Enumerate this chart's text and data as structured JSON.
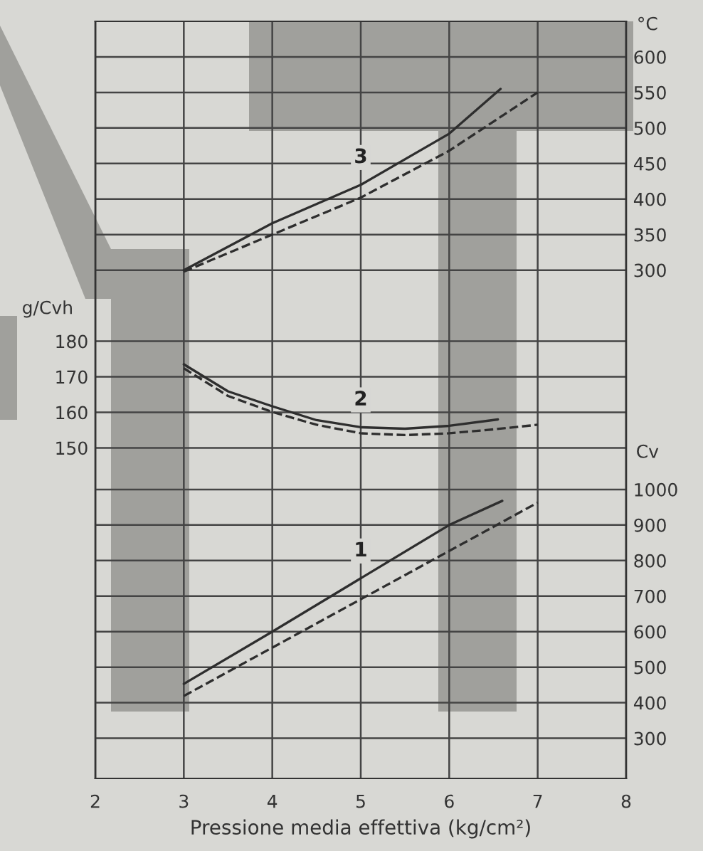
{
  "chart_data": {
    "type": "line",
    "xlabel": "Pressione media effettiva (kg/cm²)",
    "ylabel": "g/Cvh",
    "y2label": "°C",
    "y3label": "Cv",
    "xlim": [
      2,
      8
    ],
    "xticks": [
      2,
      3,
      4,
      5,
      6,
      7,
      8
    ],
    "ylim": [
      57,
      270
    ],
    "yticks": [
      150,
      160,
      170,
      180
    ],
    "y2lim": [
      -415,
      650
    ],
    "y2ticks": [
      300,
      350,
      400,
      450,
      500,
      550,
      600
    ],
    "y3lim": [
      187,
      2317
    ],
    "y3ticks": [
      300,
      400,
      500,
      600,
      700,
      800,
      900,
      1000
    ],
    "grid": true,
    "series": [
      {
        "name": "3",
        "axis": "y2",
        "color": "#2e2e2e",
        "line_style": "solid",
        "x": [
          3,
          4,
          5,
          6,
          6.58
        ],
        "values": [
          300,
          366,
          420,
          492,
          555
        ]
      },
      {
        "axis": "y2",
        "color": "#2e2e2e",
        "line_style": "dashed",
        "x": [
          3,
          4,
          5,
          6,
          7
        ],
        "values": [
          298,
          350,
          402,
          468,
          550
        ]
      },
      {
        "name": "2",
        "axis": "y",
        "color": "#2e2e2e",
        "line_style": "solid",
        "x": [
          3,
          3.5,
          4,
          4.5,
          5,
          5.5,
          6,
          6.55
        ],
        "values": [
          173.5,
          165.9,
          161.7,
          157.8,
          155.8,
          155.4,
          156.2,
          158
        ]
      },
      {
        "axis": "y",
        "color": "#2e2e2e",
        "line_style": "dashed",
        "x": [
          3,
          3.5,
          4,
          4.5,
          5,
          5.5,
          6,
          6.5,
          7
        ],
        "values": [
          172.4,
          164.6,
          160.1,
          156.5,
          154.1,
          153.6,
          154.1,
          155.2,
          156.5
        ]
      },
      {
        "name": "1",
        "axis": "y3",
        "color": "#2e2e2e",
        "line_style": "solid",
        "x": [
          3,
          4,
          5,
          6,
          6.6
        ],
        "values": [
          453,
          600,
          750,
          900,
          968
        ]
      },
      {
        "axis": "y3",
        "color": "#2e2e2e",
        "line_style": "dashed",
        "x": [
          3,
          4,
          5,
          6,
          7
        ],
        "values": [
          419,
          555,
          691,
          827,
          963
        ]
      }
    ]
  }
}
